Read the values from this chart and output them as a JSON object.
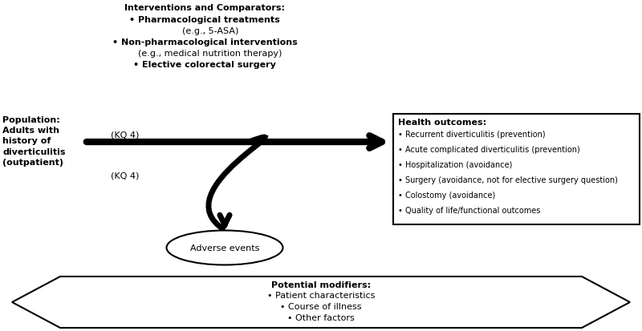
{
  "bg_color": "#ffffff",
  "interventions_title": "Interventions and Comparators:",
  "interventions_items": [
    "• Pharmacological treatments",
    "    (e.g., 5-ASA)",
    "• Non-pharmacological interventions",
    "    (e.g., medical nutrition therapy)",
    "• Elective colorectal surgery"
  ],
  "population_text": "Population:\nAdults with\nhistory of\ndiverticulitis\n(outpatient)",
  "kq4_label1": "(KQ 4)",
  "kq4_label2": "(KQ 4)",
  "health_outcomes_title": "Health outcomes:",
  "health_outcomes_items": [
    "• Recurrent diverticulitis (prevention)",
    "• Acute complicated diverticulitis (prevention)",
    "• Hospitalization (avoidance)",
    "• Surgery (avoidance, not for elective surgery question)",
    "• Colostomy (avoidance)",
    "• Quality of life/functional outcomes"
  ],
  "adverse_events_label": "Adverse events",
  "modifiers_title": "Potential modifiers:",
  "modifiers_items": [
    "• Patient characteristics",
    "• Course of illness",
    "• Other factors"
  ],
  "text_color": "#000000",
  "arrow_color": "#000000",
  "box_edge_color": "#000000",
  "box_face_color": "#ffffff",
  "bg_color2": "#ffffff"
}
